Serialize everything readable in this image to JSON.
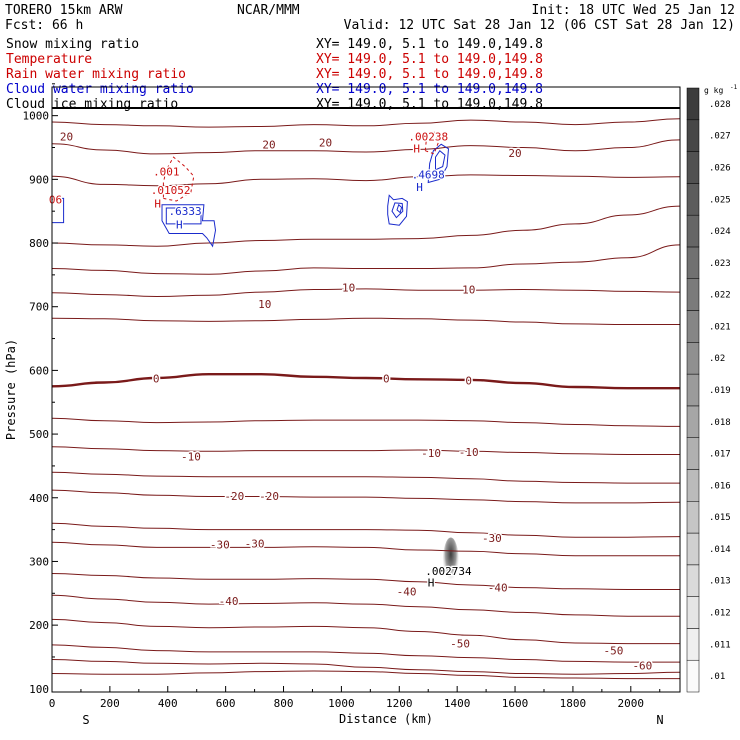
{
  "header": {
    "model": "TORERO  15km ARW",
    "center": "NCAR/MMM",
    "init": "Init: 18 UTC Wed 25 Jan 12",
    "fcst": "Fcst:    66 h",
    "valid": "Valid: 12 UTC Sat 28 Jan 12 (06 CST Sat 28 Jan 12)"
  },
  "fields": [
    {
      "name": "Snow mixing ratio",
      "xy": "XY= 149.0,  5.1 to 149.0,149.8",
      "color": "#000000"
    },
    {
      "name": "Temperature",
      "xy": "XY= 149.0,  5.1 to 149.0,149.8",
      "color": "#cc0000"
    },
    {
      "name": "Rain water mixing ratio",
      "xy": "XY= 149.0,  5.1 to 149.0,149.8",
      "color": "#cc0000"
    },
    {
      "name": "Cloud water mixing ratio",
      "xy": "XY= 149.0,  5.1 to 149.0,149.8",
      "color": "#0000cc"
    },
    {
      "name": "Cloud ice mixing ratio",
      "xy": "XY= 149.0,  5.1 to 149.0,149.8",
      "color": "#000000"
    }
  ],
  "chart_data": {
    "type": "contour",
    "xlabel": "Distance (km)",
    "ylabel": "Pressure (hPa)",
    "xlim": [
      0,
      2170
    ],
    "x_ticks": [
      0,
      200,
      400,
      600,
      800,
      1000,
      1200,
      1400,
      1600,
      1800,
      2000
    ],
    "ylim": [
      1045,
      95
    ],
    "y_ticks": [
      200,
      300,
      400,
      500,
      600,
      700,
      800,
      900,
      1000
    ],
    "y_tick_labels": [
      "200",
      "300",
      "400",
      "500",
      "600",
      "700",
      "800",
      "900",
      "1000"
    ],
    "top_tick_label": "100",
    "endpoint_labels": {
      "left": "S",
      "right": "N"
    },
    "colorbar": {
      "unit": "g kg",
      "unit_exponent": "-1",
      "levels": [
        0.01,
        0.011,
        0.012,
        0.013,
        0.014,
        0.015,
        0.016,
        0.017,
        0.018,
        0.019,
        0.02,
        0.021,
        0.022,
        0.023,
        0.024,
        0.025,
        0.026,
        0.027,
        0.028
      ],
      "labels": [
        ".01",
        ".011",
        ".012",
        ".013",
        ".014",
        ".015",
        ".016",
        ".017",
        ".018",
        ".019",
        ".02",
        ".021",
        ".022",
        ".023",
        ".024",
        ".025",
        ".026",
        ".027",
        ".028"
      ]
    },
    "temperature_contours": [
      {
        "level": -60,
        "p": [
          124,
          123,
          123,
          125,
          127,
          128,
          127,
          124,
          121,
          118,
          117,
          116,
          116
        ]
      },
      {
        "level": -60,
        "p": [
          146,
          143,
          140,
          139,
          140,
          139,
          134,
          130,
          127,
          124,
          123,
          124,
          126
        ]
      },
      {
        "level": -50,
        "p": [
          169,
          165,
          160,
          158,
          158,
          158,
          156,
          152,
          149,
          146,
          143,
          142,
          142
        ]
      },
      {
        "level": -50,
        "p": [
          209,
          204,
          198,
          196,
          197,
          198,
          196,
          190,
          184,
          177,
          172,
          171,
          171
        ]
      },
      {
        "level": -40,
        "p": [
          247,
          241,
          236,
          233,
          234,
          235,
          233,
          229,
          224,
          220,
          216,
          214,
          214
        ]
      },
      {
        "level": -40,
        "p": [
          281,
          278,
          274,
          272,
          272,
          273,
          272,
          268,
          263,
          259,
          257,
          256,
          256
        ]
      },
      {
        "level": -30,
        "p": [
          330,
          326,
          322,
          322,
          322,
          323,
          322,
          318,
          316,
          312,
          309,
          309,
          309
        ]
      },
      {
        "level": -30,
        "p": [
          360,
          355,
          352,
          350,
          350,
          350,
          350,
          349,
          345,
          341,
          338,
          338,
          339
        ]
      },
      {
        "level": -20,
        "p": [
          412,
          408,
          404,
          402,
          402,
          401,
          401,
          399,
          397,
          394,
          392,
          392,
          393
        ]
      },
      {
        "level": -20,
        "p": [
          440,
          437,
          434,
          433,
          433,
          433,
          433,
          432,
          430,
          426,
          424,
          423,
          423
        ]
      },
      {
        "level": -10,
        "p": [
          480,
          477,
          474,
          473,
          474,
          474,
          474,
          475,
          473,
          471,
          469,
          468,
          468
        ]
      },
      {
        "level": -10,
        "p": [
          525,
          521,
          518,
          519,
          521,
          522,
          522,
          522,
          521,
          518,
          515,
          513,
          512
        ]
      },
      {
        "level": 0,
        "p": [
          575,
          581,
          588,
          594,
          594,
          590,
          588,
          586,
          585,
          580,
          574,
          572,
          572
        ]
      },
      {
        "level": 10,
        "p": [
          682,
          681,
          678,
          677,
          678,
          680,
          682,
          681,
          679,
          676,
          673,
          672,
          672
        ]
      },
      {
        "level": 10,
        "p": [
          722,
          719,
          716,
          718,
          723,
          727,
          728,
          726,
          726,
          727,
          726,
          724,
          723
        ]
      },
      {
        "level": 10,
        "p": [
          760,
          757,
          752,
          751,
          756,
          761,
          760,
          760,
          761,
          767,
          770,
          777,
          797
        ]
      },
      {
        "level": 20,
        "p": [
          800,
          797,
          795,
          800,
          804,
          806,
          806,
          807,
          812,
          820,
          830,
          844,
          858
        ]
      },
      {
        "level": 20,
        "p": [
          905,
          892,
          890,
          893,
          900,
          901,
          898,
          904,
          907,
          906,
          905,
          903,
          904
        ]
      },
      {
        "level": 20,
        "p": [
          956,
          946,
          940,
          942,
          945,
          945,
          943,
          947,
          953,
          950,
          945,
          950,
          962
        ]
      },
      {
        "level": 20,
        "p": [
          990,
          986,
          984,
          982,
          983,
          986,
          984,
          988,
          993,
          990,
          986,
          990,
          995
        ]
      }
    ],
    "temperature_labels": [
      {
        "x": 2040,
        "p": 137,
        "text": "-60"
      },
      {
        "x": 1940,
        "p": 160,
        "text": "-50"
      },
      {
        "x": 1410,
        "p": 171,
        "text": "-50"
      },
      {
        "x": 610,
        "p": 238,
        "text": "-40"
      },
      {
        "x": 1225,
        "p": 253,
        "text": "-40"
      },
      {
        "x": 1540,
        "p": 259,
        "text": "-40"
      },
      {
        "x": 580,
        "p": 327,
        "text": "-30"
      },
      {
        "x": 700,
        "p": 328,
        "text": "-30"
      },
      {
        "x": 1520,
        "p": 337,
        "text": "-30"
      },
      {
        "x": 630,
        "p": 403,
        "text": "-20"
      },
      {
        "x": 750,
        "p": 403,
        "text": "-20"
      },
      {
        "x": 480,
        "p": 465,
        "text": "-10"
      },
      {
        "x": 1310,
        "p": 470,
        "text": "-10"
      },
      {
        "x": 1440,
        "p": 472,
        "text": "-10"
      },
      {
        "x": 360,
        "p": 587,
        "text": "0"
      },
      {
        "x": 1155,
        "p": 587,
        "text": "0"
      },
      {
        "x": 1440,
        "p": 584,
        "text": "0"
      },
      {
        "x": 735,
        "p": 704,
        "text": "10"
      },
      {
        "x": 1025,
        "p": 730,
        "text": "10"
      },
      {
        "x": 1440,
        "p": 727,
        "text": "10"
      },
      {
        "x": 50,
        "p": 967,
        "text": "20"
      },
      {
        "x": 750,
        "p": 955,
        "text": "20"
      },
      {
        "x": 945,
        "p": 958,
        "text": "20"
      },
      {
        "x": 1600,
        "p": 941,
        "text": "20"
      }
    ],
    "cloud_water": {
      "H_label": "H",
      "max_labels": [
        ".6333",
        ".4698"
      ],
      "left_edge_value": "06"
    },
    "rain_water": {
      "H_label": "H",
      "max_labels": [
        ".01052",
        ".00238"
      ],
      "contour_labels": [
        ".001"
      ]
    },
    "cloud_ice": {
      "H_label": "H",
      "max_label": ".002734"
    }
  }
}
